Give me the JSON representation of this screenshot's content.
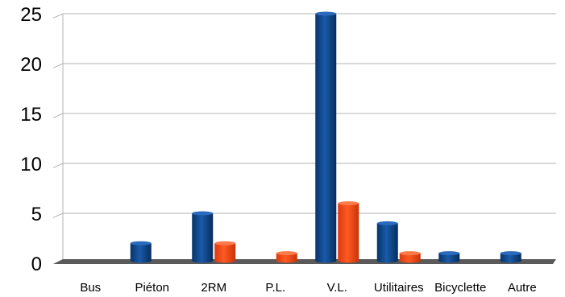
{
  "chart_data": {
    "type": "bar",
    "style": "3d-cylinder",
    "categories": [
      "Bus",
      "Piéton",
      "2RM",
      "P.L.",
      "V.L.",
      "Utilitaires",
      "Bicyclette",
      "Autre"
    ],
    "series": [
      {
        "values": [
          0,
          2,
          5,
          0,
          25,
          4,
          1,
          1
        ],
        "color": "#0b4a8f"
      },
      {
        "values": [
          0,
          0,
          2,
          1,
          6,
          1,
          0,
          0
        ],
        "color": "#ff4a1a"
      }
    ],
    "yticks": [
      "0",
      "5",
      "10",
      "15",
      "20",
      "25"
    ],
    "ylim": [
      0,
      25
    ],
    "grid": true,
    "legend": "none"
  }
}
